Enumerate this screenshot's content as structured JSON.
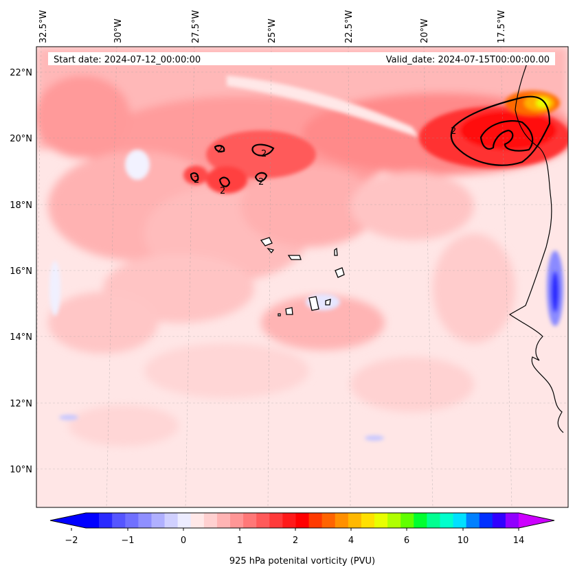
{
  "header": {
    "start_date": "Start date: 2024-07-12_00:00:00",
    "valid_date": "Valid_date: 2024-07-15T00:00:00.00"
  },
  "longitude_labels": [
    "32.5°W",
    "30°W",
    "27.5°W",
    "25°W",
    "22.5°W",
    "20°W",
    "17.5°W"
  ],
  "latitude_labels": [
    "22°N",
    "20°N",
    "18°N",
    "16°N",
    "14°N",
    "12°N",
    "10°N"
  ],
  "colorbar": {
    "label": "925 hPa potenital vorticity (PVU)",
    "ticks": [
      "−2",
      "−1",
      "0",
      "1",
      "2",
      "4",
      "6",
      "10",
      "14"
    ],
    "colors": [
      "#0000ff",
      "#2a2aff",
      "#5555ff",
      "#7070ff",
      "#8f8fff",
      "#b0b0ff",
      "#d0d0ff",
      "#ececff",
      "#ffe8e8",
      "#ffd0d0",
      "#ffb4b4",
      "#ff9696",
      "#ff7878",
      "#ff5a5a",
      "#ff3a3a",
      "#ff1a1a",
      "#ff0000",
      "#ff3a00",
      "#ff6400",
      "#ff9000",
      "#ffb800",
      "#ffe000",
      "#e8ff00",
      "#b0ff00",
      "#60ff00",
      "#00ff30",
      "#00ff90",
      "#00ffcc",
      "#00e0ff",
      "#0080ff",
      "#0030ff",
      "#3000ff",
      "#9000ff"
    ],
    "under_color": "#0000ff",
    "over_color": "#cc00ff"
  },
  "contour_label": "2",
  "colors": {
    "background_pv": "#ffe6e6",
    "coast": "#000000"
  }
}
